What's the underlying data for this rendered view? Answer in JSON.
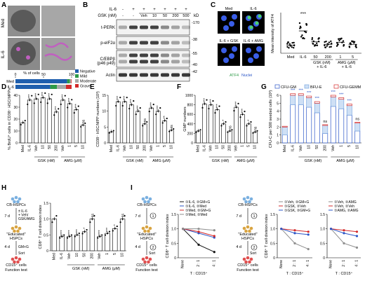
{
  "panels": {
    "A": {
      "letter": "A",
      "row_labels": [
        "Med",
        "IL-6"
      ],
      "bar_axis_title": "% of cells",
      "bar_ticks": [
        "0",
        "50",
        "100"
      ],
      "bars": [
        {
          "label": "Med",
          "segments": [
            0.92,
            0.05,
            0.02,
            0.01
          ]
        },
        {
          "label": "IL-6",
          "segments": [
            0.62,
            0.12,
            0.16,
            0.1
          ]
        }
      ],
      "legend": [
        {
          "label": "Negative",
          "color": "#1f5fae"
        },
        {
          "label": "Mild",
          "color": "#2e9a48"
        },
        {
          "label": "Moderate",
          "color": "#a9a9a9"
        },
        {
          "label": "Grave",
          "color": "#d42a2a"
        }
      ]
    },
    "B": {
      "letter": "B",
      "il6_label": "IL-6",
      "il6_values": [
        "-",
        "+",
        "+",
        "+",
        "+",
        "+",
        "+"
      ],
      "gsk_label": "GSK (nM)",
      "gsk_values": [
        "-",
        "-",
        "Veh",
        "10",
        "50",
        "200",
        "500"
      ],
      "kd_label": "kD",
      "blots": [
        {
          "label": "t-PERK",
          "mw": "170"
        },
        {
          "label": "p-eIF2α",
          "mw": "38"
        },
        {
          "label": "C/EBPβ\n(p46 p49)",
          "mw": "55",
          "mw2": "40"
        },
        {
          "label": "Actin",
          "mw": "42"
        }
      ]
    },
    "C": {
      "letter": "C",
      "image_labels": [
        "Med",
        "IL-6",
        "IL-6 + GSK\n(200 nM)",
        "IL-6 + AMG\n(5 μM)"
      ],
      "stain_labels": [
        "ATF4",
        "Nuclei"
      ],
      "y_axis_title": "Mean intensity of ATF4",
      "x_labels": [
        "Med",
        "IL-6",
        "50",
        "200",
        "1",
        "5"
      ],
      "group_labels": [
        "GSK (nM)\n+ IL-6",
        "AMG (μM)\n+ IL-6"
      ],
      "sig": "***"
    },
    "D": {
      "letter": "D",
      "y_axis_title": "% BrdU⁺ cells in CD38⁻ HSC/MPPs",
      "y_ticks": [
        "0",
        "10",
        "20",
        "30",
        "40"
      ]
    },
    "E": {
      "letter": "E",
      "y_axis_title": "CD38⁻ HSC/MPP numbers (10³)",
      "y_ticks": [
        "0",
        "5",
        "10",
        "15"
      ]
    },
    "F": {
      "letter": "F",
      "y_axis_title": "GMP numbers",
      "y_ticks": [
        "0",
        "200",
        "400",
        "600",
        "800",
        "1000"
      ]
    },
    "G": {
      "letter": "G",
      "y_axis_title": "CFU-C per 500 seeded cells (10³)",
      "y_ticks": [
        "0",
        "1",
        "2",
        "3",
        "4",
        "5",
        "6"
      ],
      "legend": [
        "CFU-GM",
        "BFU-E",
        "CFU-GEMM"
      ]
    },
    "H": {
      "letter": "H",
      "y_axis_title": "CD8⁺ T cell division index",
      "y_ticks": [
        "0",
        "0.5",
        "1.0",
        "1.5"
      ],
      "schematic": {
        "top": "CB-HSPCs",
        "step1_days": "7 d",
        "step1_text": "± IL-6\n+ Veh/\nGSK/AMG",
        "mid": "\"Educated\"\nHSPCs",
        "step2_days": "4 d",
        "step2_text": "GM+G",
        "sort": "Sort",
        "bottom": "CD15⁺ cells",
        "bottom2": "Function test"
      }
    },
    "I": {
      "letter": "I",
      "schematic": {
        "top": "CB-HSPCs",
        "step1_days": "7 d",
        "step1_num": "1",
        "mid": "\"Educated\"\nHSPCs",
        "step2_days": "4 d",
        "step2_num": "2",
        "sort": "Sort",
        "bottom": "CD15⁺ cells",
        "bottom2": "Function test"
      },
      "y_axis_title": "CD8⁺ T cell division index",
      "x_axis_title": "T : CD15⁺",
      "x_ticks": [
        "None",
        "2 : 1",
        "4 : 1"
      ],
      "y_ticks_left": [
        "0",
        "0.5",
        "1.0",
        "1.5"
      ],
      "legend1": [
        "①IL-6, ②GM+G",
        "①IL-6, ②Med",
        "①Med, ②GM+G",
        "①Med, ②Med"
      ],
      "legend2": [
        "①Veh, ②GM+G",
        "①GSK, ②Veh",
        "①GSK, ②GM+G"
      ],
      "legend3": [
        "①Veh, ②AMG",
        "①Veh, ②Veh",
        "①AMG, ②AMG"
      ]
    }
  },
  "shared": {
    "x_labels": [
      "Med",
      "IL-6",
      "Veh",
      "10",
      "50",
      "200",
      "Veh",
      "1",
      "5",
      "10"
    ],
    "gsk_group": "GSK (nM)",
    "amg_group": "AMG (μM)",
    "sig_high": "***",
    "sig_ns": "ns"
  },
  "chart_data": [
    {
      "panel": "D",
      "type": "bar",
      "categories": [
        "Med",
        "IL-6",
        "Veh",
        "10",
        "50",
        "200",
        "Veh",
        "1",
        "5",
        "10"
      ],
      "values": [
        17,
        36,
        37,
        38,
        37,
        26,
        36,
        33,
        28,
        15
      ],
      "ylim": [
        0,
        40
      ],
      "sig": [
        "",
        "***",
        "***",
        "***",
        "***",
        "***",
        "***",
        "***",
        "***",
        "ns"
      ],
      "ylabel": "% BrdU⁺ cells in CD38⁻ HSC/MPPs"
    },
    {
      "panel": "E",
      "type": "bar",
      "categories": [
        "Med",
        "IL-6",
        "Veh",
        "10",
        "50",
        "200",
        "Veh",
        "1",
        "5",
        "10"
      ],
      "values": [
        3.5,
        13,
        13,
        12,
        10,
        6,
        11,
        10,
        7,
        4
      ],
      "ylim": [
        0,
        15
      ],
      "sig": [
        "",
        "***",
        "***",
        "***",
        "***",
        "ns",
        "***",
        "***",
        "**",
        "ns"
      ],
      "ylabel": "CD38⁻ HSC/MPP numbers (10³)"
    },
    {
      "panel": "F",
      "type": "bar",
      "categories": [
        "Med",
        "IL-6",
        "Veh",
        "10",
        "50",
        "200",
        "Veh",
        "1",
        "5",
        "10"
      ],
      "values": [
        250,
        820,
        800,
        700,
        400,
        250,
        750,
        600,
        400,
        230
      ],
      "ylim": [
        0,
        1000
      ],
      "sig": [
        "",
        "***",
        "***",
        "***",
        "*",
        "ns",
        "***",
        "***",
        "*",
        "ns"
      ],
      "ylabel": "GMP numbers"
    },
    {
      "panel": "G",
      "type": "bar",
      "categories": [
        "Med",
        "IL-6",
        "Veh",
        "10",
        "50",
        "200",
        "Veh",
        "1",
        "5",
        "10"
      ],
      "series": [
        {
          "name": "CFU-GM",
          "values": [
            1.0,
            4.8,
            4.8,
            4.5,
            3.8,
            1.2,
            4.6,
            4.3,
            3.5,
            1.5
          ]
        },
        {
          "name": "BFU-E",
          "values": [
            1.0,
            1.2,
            1.2,
            1.2,
            1.2,
            1.0,
            1.2,
            1.2,
            1.2,
            1.0
          ]
        },
        {
          "name": "CFU-GEMM",
          "values": [
            0.1,
            0.2,
            0.2,
            0.2,
            0.2,
            0.1,
            0.2,
            0.2,
            0.2,
            0.1
          ]
        }
      ],
      "ylim": [
        0,
        6
      ],
      "sig": [
        "",
        "***",
        "***",
        "***",
        "***",
        "ns",
        "***",
        "***",
        "***",
        "ns"
      ],
      "ylabel": "CFU-C per 500 seeded cells (10³)"
    },
    {
      "panel": "H",
      "type": "bar",
      "categories": [
        "Med",
        "IL-6",
        "Veh",
        "10",
        "50",
        "200",
        "Veh",
        "1",
        "5",
        "10"
      ],
      "values": [
        1.0,
        0.45,
        0.45,
        0.5,
        0.6,
        1.0,
        0.45,
        0.55,
        0.7,
        1.0
      ],
      "ylim": [
        0,
        1.5
      ],
      "sig": [
        "",
        "****",
        "****",
        "***",
        "*",
        "ns",
        "****",
        "***",
        "*",
        "ns"
      ],
      "ylabel": "CD8⁺ T cell division index"
    },
    {
      "panel": "I1",
      "type": "line",
      "x": [
        "None",
        "2 : 1",
        "4 : 1"
      ],
      "series": [
        {
          "name": "①IL-6, ②GM+G",
          "values": [
            1.0,
            0.45,
            0.2
          ]
        },
        {
          "name": "①IL-6, ②Med",
          "values": [
            1.0,
            0.85,
            0.7
          ]
        },
        {
          "name": "①Med, ②GM+G",
          "values": [
            1.0,
            0.9,
            0.75
          ]
        },
        {
          "name": "①Med, ②Med",
          "values": [
            1.0,
            1.0,
            0.95
          ]
        }
      ],
      "ylim": [
        0,
        1.5
      ],
      "colors": [
        "#111111",
        "#2a55c7",
        "#d42a2a",
        "#8d8d8d"
      ]
    },
    {
      "panel": "I2",
      "type": "line",
      "x": [
        "None",
        "2 : 1",
        "4 : 1"
      ],
      "series": [
        {
          "name": "①Veh, ②GM+G",
          "values": [
            1.0,
            0.5,
            0.3
          ]
        },
        {
          "name": "①GSK, ②Veh",
          "values": [
            1.0,
            0.95,
            0.9
          ]
        },
        {
          "name": "①GSK, ②GM+G",
          "values": [
            1.0,
            0.85,
            0.8
          ]
        }
      ],
      "ylim": [
        0,
        1.5
      ],
      "colors": [
        "#8d8d8d",
        "#d42a2a",
        "#2a55c7"
      ]
    },
    {
      "panel": "I3",
      "type": "line",
      "x": [
        "None",
        "2 : 1",
        "4 : 1"
      ],
      "series": [
        {
          "name": "①Veh, ②AMG",
          "values": [
            1.0,
            0.5,
            0.35
          ]
        },
        {
          "name": "①Veh, ②Veh",
          "values": [
            1.0,
            0.95,
            0.9
          ]
        },
        {
          "name": "①AMG, ②AMG",
          "values": [
            1.0,
            0.85,
            0.75
          ]
        }
      ],
      "ylim": [
        0,
        1.5
      ],
      "colors": [
        "#8d8d8d",
        "#d42a2a",
        "#2a55c7"
      ]
    },
    {
      "panel": "C",
      "type": "scatter",
      "categories": [
        "Med",
        "IL-6",
        "50",
        "200",
        "1",
        "5"
      ],
      "means": [
        20,
        55,
        28,
        22,
        27,
        22
      ],
      "ylim": [
        0,
        100
      ]
    }
  ]
}
